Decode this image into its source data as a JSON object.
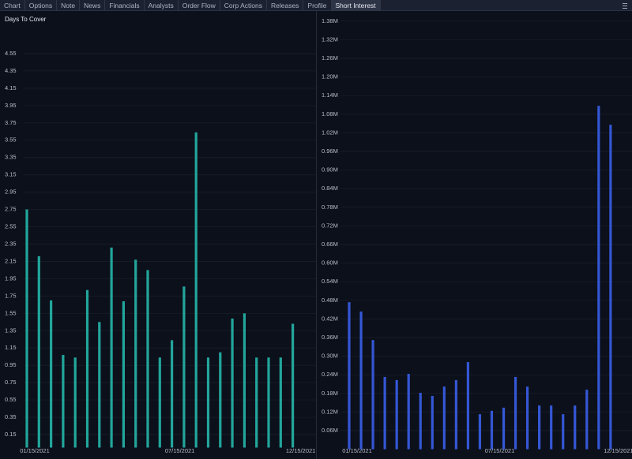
{
  "tabs": [
    {
      "label": "Chart"
    },
    {
      "label": "Options"
    },
    {
      "label": "Note"
    },
    {
      "label": "News"
    },
    {
      "label": "Financials"
    },
    {
      "label": "Analysts"
    },
    {
      "label": "Order Flow"
    },
    {
      "label": "Corp Actions"
    },
    {
      "label": "Releases"
    },
    {
      "label": "Profile"
    },
    {
      "label": "Short Interest",
      "active": true
    }
  ],
  "chart_data": [
    {
      "type": "bar",
      "title": "Days To Cover",
      "color": "#22a69c",
      "grid": true,
      "categories": [
        "01/15/2021",
        null,
        null,
        null,
        null,
        null,
        null,
        null,
        null,
        null,
        null,
        null,
        "07/15/2021",
        null,
        null,
        null,
        null,
        null,
        null,
        null,
        null,
        null,
        "12/15/2021"
      ],
      "values": [
        2.75,
        2.21,
        1.7,
        1.07,
        1.04,
        1.82,
        1.45,
        2.31,
        1.69,
        2.17,
        2.05,
        1.04,
        1.24,
        1.86,
        3.64,
        1.04,
        1.1,
        1.49,
        1.55,
        1.04,
        1.04,
        1.04,
        1.43
      ],
      "ylim": [
        0,
        4.7
      ],
      "yticks": [
        0.15,
        0.35,
        0.55,
        0.75,
        0.95,
        1.15,
        1.35,
        1.55,
        1.75,
        1.95,
        2.15,
        2.35,
        2.55,
        2.75,
        2.95,
        3.15,
        3.35,
        3.55,
        3.75,
        3.95,
        4.15,
        4.35,
        4.55
      ]
    },
    {
      "type": "bar",
      "color": "#3457d5",
      "grid": true,
      "categories": [
        "01/15/2021",
        null,
        null,
        null,
        null,
        null,
        null,
        null,
        null,
        null,
        null,
        null,
        "07/15/2021",
        null,
        null,
        null,
        null,
        null,
        null,
        null,
        null,
        null,
        "12/15/2021"
      ],
      "values": [
        0.474,
        0.444,
        0.352,
        0.233,
        0.223,
        0.243,
        0.182,
        0.172,
        0.202,
        0.223,
        0.281,
        0.113,
        0.124,
        0.134,
        0.233,
        0.202,
        0.141,
        0.141,
        0.113,
        0.141,
        0.192,
        1.107,
        1.046
      ],
      "ylim": [
        0,
        1.44
      ],
      "yticks": [
        {
          "value": 0.06,
          "label": "0.06M"
        },
        {
          "value": 0.12,
          "label": "0.12M"
        },
        {
          "value": 0.18,
          "label": "0.18M"
        },
        {
          "value": 0.24,
          "label": "0.24M"
        },
        {
          "value": 0.3,
          "label": "0.30M"
        },
        {
          "value": 0.36,
          "label": "0.36M"
        },
        {
          "value": 0.42,
          "label": "0.42M"
        },
        {
          "value": 0.48,
          "label": "0.48M"
        },
        {
          "value": 0.54,
          "label": "0.54M"
        },
        {
          "value": 0.6,
          "label": "0.60M"
        },
        {
          "value": 0.66,
          "label": "0.66M"
        },
        {
          "value": 0.72,
          "label": "0.72M"
        },
        {
          "value": 0.78,
          "label": "0.78M"
        },
        {
          "value": 0.84,
          "label": "0.84M"
        },
        {
          "value": 0.9,
          "label": "0.90M"
        },
        {
          "value": 0.96,
          "label": "0.96M"
        },
        {
          "value": 1.02,
          "label": "1.02M"
        },
        {
          "value": 1.08,
          "label": "1.08M"
        },
        {
          "value": 1.14,
          "label": "1.14M"
        },
        {
          "value": 1.2,
          "label": "1.20M"
        },
        {
          "value": 1.26,
          "label": "1.26M"
        },
        {
          "value": 1.32,
          "label": "1.32M"
        },
        {
          "value": 1.38,
          "label": "1.38M"
        }
      ]
    }
  ]
}
